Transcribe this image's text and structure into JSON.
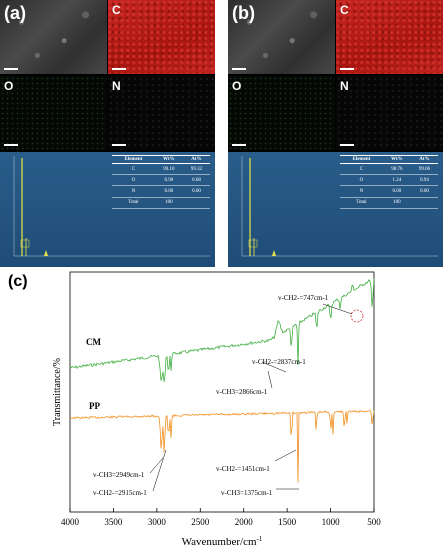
{
  "panels": [
    {
      "letter": "(a)",
      "maps": [
        "C",
        "O",
        "N"
      ],
      "table": {
        "headers": [
          "Element",
          "Wt%",
          "At%"
        ],
        "rows": [
          [
            "C",
            "99.10",
            "99.32"
          ],
          [
            "O",
            "0.90",
            "0.68"
          ],
          [
            "N",
            "0.00",
            "0.00"
          ],
          [
            "Total",
            "100",
            ""
          ]
        ]
      }
    },
    {
      "letter": "(b)",
      "maps": [
        "C",
        "O",
        "N"
      ],
      "table": {
        "headers": [
          "Element",
          "Wt%",
          "At%"
        ],
        "rows": [
          [
            "C",
            "98.76",
            "99.06"
          ],
          [
            "O",
            "1.24",
            "0.94"
          ],
          [
            "N",
            "0.00",
            "0.00"
          ],
          [
            "Total",
            "100",
            ""
          ]
        ]
      }
    }
  ],
  "ftir": {
    "letter": "(c)",
    "ylabel": "Transmittance/%",
    "xlabel": "Wavenumber/cm",
    "xlabel_sup": "-1",
    "xticks": [
      "4000",
      "3500",
      "3000",
      "2500",
      "2000",
      "1500",
      "1000",
      "500"
    ],
    "sample_cm": "CM",
    "sample_pp": "PP",
    "annotations": {
      "cm_747": "v-CH2-=747cm-1",
      "cm_2837": "v-CH2-=2837cm-1",
      "cm_2866": "v-CH3=2866cm-1",
      "pp_2949": "v-CH3=2949cm-1",
      "pp_2915": "v-CH2-=2915cm-1",
      "pp_1451": "v-CH2-=1451cm-1",
      "pp_1375": "v-CH3=1375cm-1"
    },
    "colors": {
      "cm": "#3fae3f",
      "pp": "#f0901f",
      "circle": "#d62728"
    }
  }
}
